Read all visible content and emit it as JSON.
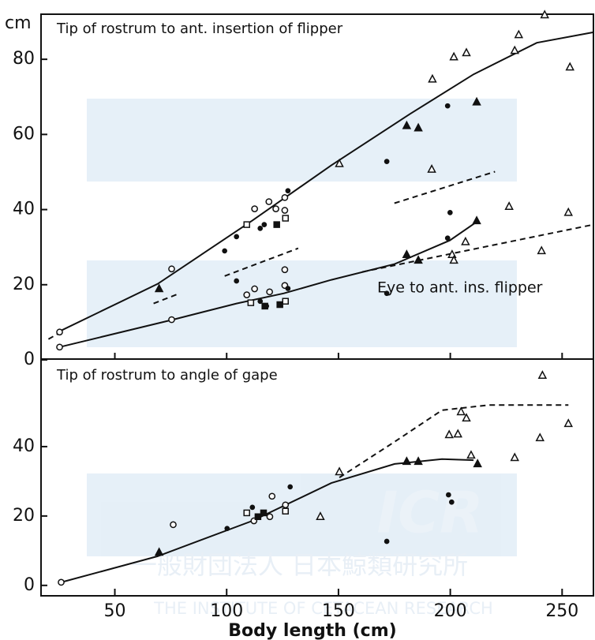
{
  "chart_data": [
    {
      "type": "scatter",
      "title": "Tip of rostrum to ant. insertion of flipper",
      "ylabel": "cm",
      "annotations": [
        "Eye to ant. ins. flipper"
      ],
      "xlim": [
        17,
        264
      ],
      "xticks": [
        50,
        100,
        150,
        200,
        250
      ],
      "ylim": [
        0,
        92
      ],
      "yticks": [
        0,
        20,
        40,
        60,
        80
      ],
      "color": "#111111",
      "series": [
        {
          "marker": "open-circle",
          "x": [
            25.3,
            25.3,
            75.4,
            75.4,
            112.5,
            118.9,
            122,
            126,
            126,
            126,
            126,
            112.5,
            119.2,
            109
          ],
          "values": [
            7.4,
            3.4,
            24.2,
            10.7,
            40.2,
            42.1,
            40.2,
            43.2,
            39.8,
            24,
            19.8,
            18.9,
            18.1,
            17.3
          ]
        },
        {
          "marker": "filled-circle",
          "x": [
            99.1,
            104.4,
            127.4,
            171.6,
            198.8,
            199.9,
            104.4,
            127.4,
            171.6,
            198.8,
            115,
            116.8,
            115,
            117.8
          ],
          "values": [
            29,
            32.8,
            45,
            52.8,
            67.6,
            39.2,
            21,
            19,
            17.7,
            32.4,
            35,
            36,
            15.6,
            14.3
          ]
        },
        {
          "marker": "filled-square",
          "x": [
            122.4,
            117.1,
            123.8
          ],
          "values": [
            36,
            14.3,
            14.7
          ]
        },
        {
          "marker": "open-square",
          "x": [
            109,
            126.3,
            126.3,
            110.8
          ],
          "values": [
            36,
            37.7,
            15.6,
            15.2
          ]
        },
        {
          "marker": "open-triangle",
          "x": [
            150.4,
            192,
            201.6,
            207.2,
            191.7,
            230.6,
            228.8,
            242.2,
            253.5,
            252.8,
            240.8,
            206.8,
            200.8,
            201.6,
            226.3
          ],
          "values": [
            52.2,
            74.7,
            80.6,
            81.7,
            50.7,
            86.5,
            82.3,
            91.8,
            77.9,
            39.2,
            29,
            31.4,
            28,
            26.5,
            40.8
          ]
        },
        {
          "marker": "filled-triangle",
          "x": [
            69.8,
            180.5,
            185.7,
            211.8,
            180.5,
            185.7,
            211.8
          ],
          "values": [
            18.9,
            62.3,
            61.7,
            68.6,
            28,
            26.5,
            37
          ]
        }
      ],
      "curves": [
        {
          "style": "solid",
          "x": [
            25.3,
            69.1,
            111.5,
            146.8,
            182.1,
            210.4,
            238.7,
            264
          ],
          "values": [
            7.6,
            20.2,
            37.1,
            51.8,
            65.5,
            76,
            84.4,
            87.2
          ]
        },
        {
          "style": "solid",
          "x": [
            25.3,
            75.9,
            104.4,
            125.6,
            146.8,
            175.1,
            199.8,
            212.5
          ],
          "values": [
            3.4,
            10.7,
            15,
            17.7,
            21.3,
            25.5,
            31.8,
            37
          ]
        },
        {
          "style": "dashed",
          "x": [
            20.3,
            25.3
          ],
          "values": [
            5.5,
            7.2
          ]
        },
        {
          "style": "dashed",
          "x": [
            67.3,
            79
          ],
          "values": [
            15,
            17.7
          ]
        },
        {
          "style": "dashed",
          "x": [
            99.1,
            132
          ],
          "values": [
            22.3,
            29.7
          ]
        },
        {
          "style": "dashed",
          "x": [
            175,
            220
          ],
          "values": [
            41.7,
            50.1
          ]
        },
        {
          "style": "dashed",
          "x": [
            160.6,
            264
          ],
          "values": [
            23.4,
            36
          ]
        }
      ]
    },
    {
      "type": "scatter",
      "title": "Tip of rostrum to angle of gape",
      "xlabel": "Body  length  (cm)",
      "xlim": [
        17,
        264
      ],
      "xticks": [
        50,
        100,
        150,
        200,
        250
      ],
      "ylim": [
        -3,
        65
      ],
      "yticks": [
        0,
        20,
        40
      ],
      "color": "#111111",
      "series": [
        {
          "marker": "open-circle",
          "x": [
            26,
            76.1,
            119.3,
            126.3,
            120.3,
            112.2
          ],
          "values": [
            0.9,
            17.5,
            19.8,
            23.2,
            25.7,
            18.6
          ]
        },
        {
          "marker": "filled-circle",
          "x": [
            100.2,
            111.5,
            128.4,
            171.6,
            199.2,
            200.6
          ],
          "values": [
            16.4,
            22.5,
            28.4,
            12.7,
            26.1,
            24
          ]
        },
        {
          "marker": "filled-square",
          "x": [
            114,
            116.5
          ],
          "values": [
            19.8,
            20.9
          ]
        },
        {
          "marker": "open-square",
          "x": [
            109,
            126.3
          ],
          "values": [
            20.9,
            21.4
          ]
        },
        {
          "marker": "open-triangle",
          "x": [
            150.4,
            141.9,
            203.4,
            204.8,
            207.2,
            209.3,
            199.5,
            228.8,
            240.1,
            241.2,
            252.8
          ],
          "values": [
            32.7,
            19.8,
            43.6,
            50,
            48.2,
            37.5,
            43.4,
            36.8,
            42.5,
            60.5,
            46.6
          ]
        },
        {
          "marker": "filled-triangle",
          "x": [
            69.8,
            180.5,
            185.7,
            212.2
          ],
          "values": [
            9.5,
            35.7,
            35.7,
            35
          ]
        }
      ],
      "curves": [
        {
          "style": "solid",
          "x": [
            26,
            69.1,
            111.5,
            146.8,
            175.1,
            196.3,
            210.4
          ],
          "values": [
            0.9,
            8.4,
            18.6,
            29.5,
            35,
            36.4,
            36.1
          ]
        },
        {
          "style": "dashed",
          "x": [
            150.4,
            175.1,
            196.3,
            217.5,
            252.8
          ],
          "values": [
            31.1,
            41.4,
            50.5,
            52,
            52
          ]
        }
      ]
    }
  ],
  "watermark": {
    "logo": "ICR",
    "japanese": "一般財団法人 日本鯨類研究所",
    "english": "THE INSTITUTE OF CETACEAN RESEARCH"
  }
}
